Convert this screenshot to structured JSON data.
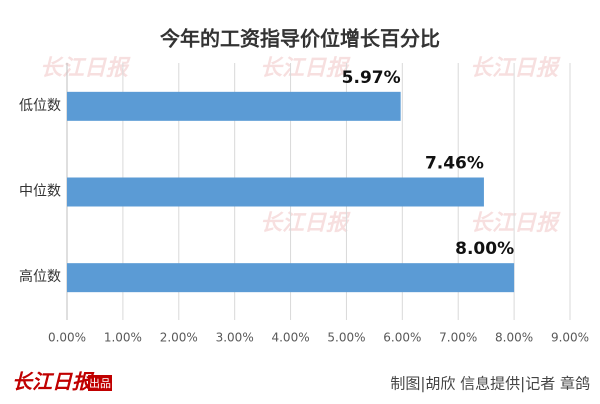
{
  "chart_data": {
    "type": "bar",
    "orientation": "horizontal",
    "title": "今年的工资指导价位增长百分比",
    "categories": [
      "低位数",
      "中位数",
      "高位数"
    ],
    "values": [
      5.97,
      7.46,
      8.0
    ],
    "value_labels": [
      "5.97%",
      "7.46%",
      "8.00%"
    ],
    "color": "#5b9bd5",
    "xlim": [
      0,
      9
    ],
    "xticks": [
      {
        "value": 0,
        "label": "0.00%"
      },
      {
        "value": 1,
        "label": "1.00%"
      },
      {
        "value": 2,
        "label": "2.00%"
      },
      {
        "value": 3,
        "label": "3.00%"
      },
      {
        "value": 4,
        "label": "4.00%"
      },
      {
        "value": 5,
        "label": "5.00%"
      },
      {
        "value": 6,
        "label": "6.00%"
      },
      {
        "value": 7,
        "label": "7.00%"
      },
      {
        "value": 8,
        "label": "8.00%"
      },
      {
        "value": 9,
        "label": "9.00%"
      }
    ],
    "grid": true
  },
  "brand": {
    "name": "长江日报",
    "tag": "出品"
  },
  "credit": "制图|胡欣 信息提供|记者 章鸽"
}
